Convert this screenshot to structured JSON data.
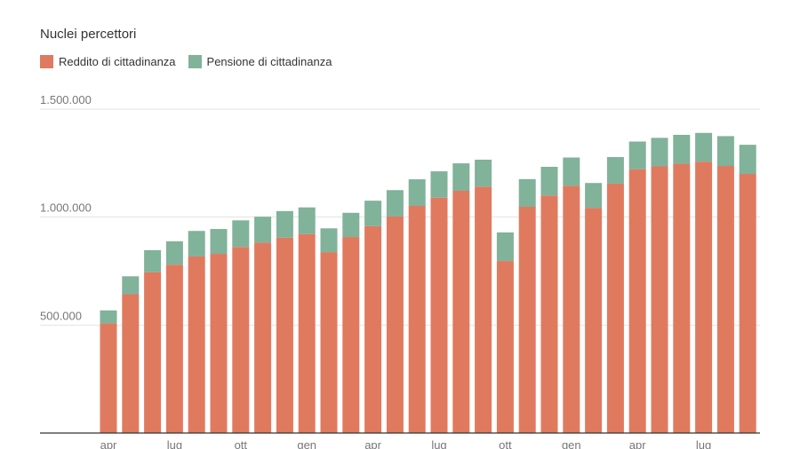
{
  "chart_data": {
    "type": "bar",
    "stacked": true,
    "title": "Nuclei percettori",
    "series": [
      {
        "name": "Reddito di cittadinanza",
        "color": "#e07a5f",
        "values": [
          508000,
          643000,
          745000,
          780000,
          818000,
          830000,
          862000,
          882000,
          905000,
          922000,
          838000,
          908000,
          958000,
          1003000,
          1052000,
          1090000,
          1122000,
          1141000,
          797000,
          1048000,
          1100000,
          1145000,
          1043000,
          1155000,
          1222000,
          1235000,
          1247000,
          1257000,
          1237000,
          1200000
        ]
      },
      {
        "name": "Pensione di cittadinanza",
        "color": "#81b29a",
        "values": [
          60000,
          83000,
          102000,
          108000,
          118000,
          115000,
          123000,
          120000,
          123000,
          123000,
          110000,
          112000,
          118000,
          122000,
          123000,
          122000,
          127000,
          125000,
          132000,
          128000,
          133000,
          131000,
          115000,
          123000,
          128000,
          132000,
          134000,
          133000,
          138000,
          135000
        ]
      }
    ],
    "x_ticks": [
      {
        "label": "apr",
        "index": 0
      },
      {
        "label": "lug",
        "index": 3
      },
      {
        "label": "ott",
        "index": 6
      },
      {
        "label": "gen",
        "index": 9
      },
      {
        "label": "apr",
        "index": 12
      },
      {
        "label": "lug",
        "index": 15
      },
      {
        "label": "ott",
        "index": 18
      },
      {
        "label": "gen",
        "index": 21
      },
      {
        "label": "apr",
        "index": 24
      },
      {
        "label": "lug",
        "index": 27
      }
    ],
    "y_ticks": [
      {
        "value": 500000,
        "label": "500.000"
      },
      {
        "value": 1000000,
        "label": "1.000.000"
      },
      {
        "value": 1500000,
        "label": "1.500.000"
      }
    ],
    "ylim": [
      0,
      1500000
    ],
    "grid": true,
    "legend_position": "top-left"
  }
}
